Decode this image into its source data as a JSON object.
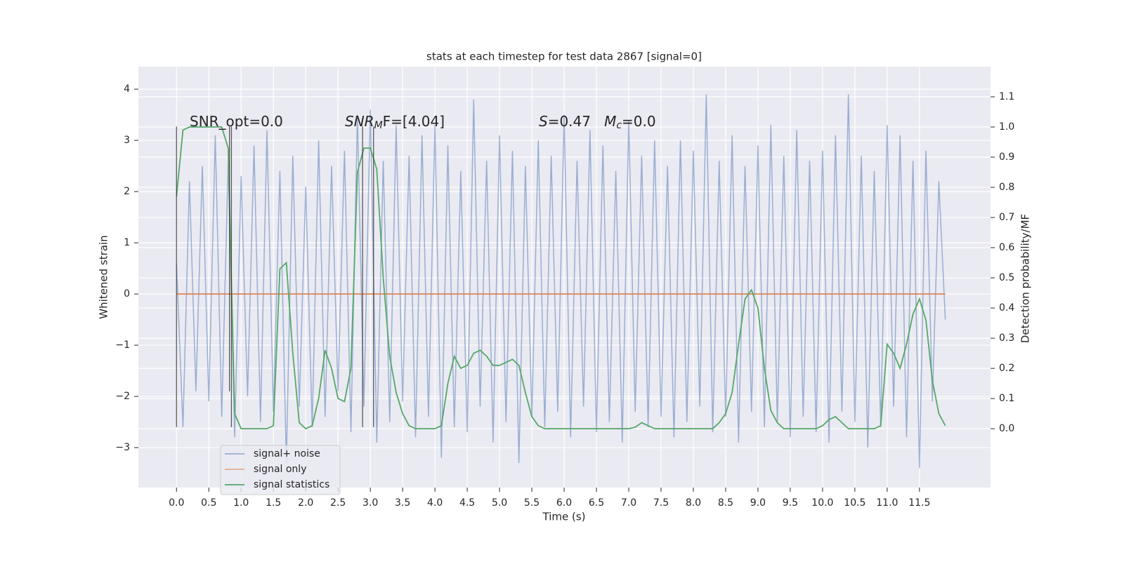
{
  "chart_data": {
    "type": "line",
    "title": "stats at each timestep for test data 2867 [signal=0]",
    "xlabel": "Time (s)",
    "ylabel": "Whitened strain",
    "y2label": "Detection probability/MF",
    "x": [
      0,
      0.1,
      0.2,
      0.3,
      0.4,
      0.5,
      0.6,
      0.7,
      0.8,
      0.9,
      1,
      1.1,
      1.2,
      1.3,
      1.4,
      1.5,
      1.6,
      1.7,
      1.8,
      1.9,
      2,
      2.1,
      2.2,
      2.3,
      2.4,
      2.5,
      2.6,
      2.7,
      2.8,
      2.9,
      3,
      3.1,
      3.2,
      3.3,
      3.4,
      3.5,
      3.6,
      3.7,
      3.8,
      3.9,
      4,
      4.1,
      4.2,
      4.3,
      4.4,
      4.5,
      4.6,
      4.7,
      4.8,
      4.9,
      5,
      5.1,
      5.2,
      5.3,
      5.4,
      5.5,
      5.6,
      5.7,
      5.8,
      5.9,
      6,
      6.1,
      6.2,
      6.3,
      6.4,
      6.5,
      6.6,
      6.7,
      6.8,
      6.9,
      7,
      7.1,
      7.2,
      7.3,
      7.4,
      7.5,
      7.6,
      7.7,
      7.8,
      7.9,
      8,
      8.1,
      8.2,
      8.3,
      8.4,
      8.5,
      8.6,
      8.7,
      8.8,
      8.9,
      9,
      9.1,
      9.2,
      9.3,
      9.4,
      9.5,
      9.6,
      9.7,
      9.8,
      9.9,
      10,
      10.1,
      10.2,
      10.3,
      10.4,
      10.5,
      10.6,
      10.7,
      10.8,
      10.9,
      11,
      11.1,
      11.2,
      11.3,
      11.4,
      11.5,
      11.6,
      11.7,
      11.8,
      11.9
    ],
    "series": [
      {
        "name": "signal+ noise",
        "color": "#4c72b0",
        "values": [
          0.6,
          -2.6,
          2.2,
          -1.9,
          2.5,
          -2.1,
          3.1,
          -2.4,
          2.6,
          -2.8,
          2.3,
          -2.0,
          2.9,
          -2.5,
          3.2,
          -2.3,
          2.4,
          -3.3,
          2.7,
          -2.2,
          2.1,
          -2.6,
          3.0,
          -2.4,
          2.5,
          -1.9,
          2.8,
          -2.7,
          3.5,
          -2.2,
          3.6,
          -2.9,
          2.6,
          -2.5,
          3.3,
          -2.1,
          2.7,
          -2.8,
          3.1,
          -2.4,
          3.3,
          -3.2,
          2.9,
          -2.6,
          2.4,
          -2.7,
          3.8,
          -2.2,
          2.6,
          -2.9,
          3.1,
          -2.5,
          2.8,
          -3.3,
          2.5,
          -2.4,
          3.0,
          -2.6,
          2.7,
          -2.3,
          3.5,
          -2.8,
          2.6,
          -2.2,
          3.2,
          -2.7,
          2.9,
          -2.5,
          2.4,
          -2.9,
          3.4,
          -2.3,
          2.7,
          -2.6,
          3.0,
          -2.4,
          2.5,
          -2.8,
          3.0,
          -2.5,
          2.8,
          -2.2,
          3.9,
          -2.7,
          2.6,
          -2.4,
          3.1,
          -2.9,
          2.5,
          -2.3,
          2.9,
          -2.6,
          3.3,
          -2.5,
          2.7,
          -2.8,
          3.2,
          -2.4,
          2.6,
          -2.7,
          2.8,
          -2.9,
          3.1,
          -2.3,
          3.9,
          -2.5,
          2.7,
          -3.0,
          2.4,
          -2.6,
          3.3,
          -2.2,
          3.1,
          -2.8,
          2.6,
          -3.4,
          2.8,
          -2.1,
          2.2,
          -0.5
        ]
      },
      {
        "name": "signal only",
        "color": "#dd8452",
        "values": [
          0,
          0,
          0,
          0,
          0,
          0,
          0,
          0,
          0,
          0,
          0,
          0,
          0,
          0,
          0,
          0,
          0,
          0,
          0,
          0,
          0,
          0,
          0,
          0,
          0,
          0,
          0,
          0,
          0,
          0,
          0,
          0,
          0,
          0,
          0,
          0,
          0,
          0,
          0,
          0,
          0,
          0,
          0,
          0,
          0,
          0,
          0,
          0,
          0,
          0,
          0,
          0,
          0,
          0,
          0,
          0,
          0,
          0,
          0,
          0,
          0,
          0,
          0,
          0,
          0,
          0,
          0,
          0,
          0,
          0,
          0,
          0,
          0,
          0,
          0,
          0,
          0,
          0,
          0,
          0,
          0,
          0,
          0,
          0,
          0,
          0,
          0,
          0,
          0,
          0,
          0,
          0,
          0,
          0,
          0,
          0,
          0,
          0,
          0,
          0,
          0,
          0,
          0,
          0,
          0,
          0,
          0,
          0,
          0,
          0,
          0,
          0,
          0,
          0,
          0,
          0,
          0,
          0,
          0,
          0
        ]
      },
      {
        "name": "signal statistics",
        "color": "#55a868",
        "axis": "y2",
        "values": [
          0.77,
          0.99,
          1.0,
          1.0,
          1.0,
          1.0,
          1.0,
          1.0,
          0.93,
          0.05,
          0.0,
          0.0,
          0.0,
          0.0,
          0.0,
          0.01,
          0.53,
          0.55,
          0.25,
          0.02,
          0.0,
          0.01,
          0.1,
          0.26,
          0.2,
          0.1,
          0.09,
          0.2,
          0.85,
          0.93,
          0.93,
          0.86,
          0.5,
          0.24,
          0.12,
          0.05,
          0.01,
          0.0,
          0.0,
          0.0,
          0.0,
          0.01,
          0.15,
          0.24,
          0.2,
          0.21,
          0.25,
          0.26,
          0.24,
          0.21,
          0.21,
          0.22,
          0.23,
          0.21,
          0.12,
          0.04,
          0.01,
          0.0,
          0.0,
          0.0,
          0,
          0,
          0,
          0,
          0,
          0,
          0,
          0,
          0,
          0,
          0.0,
          0.005,
          0.02,
          0.01,
          0,
          0,
          0,
          0,
          0,
          0,
          0,
          0,
          0,
          0,
          0.02,
          0.05,
          0.12,
          0.28,
          0.43,
          0.46,
          0.4,
          0.2,
          0.06,
          0.02,
          0,
          0,
          0,
          0,
          0,
          0,
          0.01,
          0.03,
          0.04,
          0.02,
          0,
          0,
          0,
          0,
          0,
          0.01,
          0.28,
          0.25,
          0.2,
          0.28,
          0.38,
          0.43,
          0.36,
          0.16,
          0.05,
          0.01
        ]
      }
    ],
    "vlines": [
      {
        "x": 0,
        "ymin": -2.6,
        "ymax": 3.27,
        "color": "#333333"
      },
      {
        "x": 0.82,
        "ymin": -1.9,
        "ymax": 3.27,
        "color": "#333333"
      },
      {
        "x": 0.85,
        "ymin": -2.6,
        "ymax": 3.27,
        "color": "#333333"
      },
      {
        "x": 2.88,
        "ymin": -2.6,
        "ymax": 3.27,
        "color": "#333333"
      },
      {
        "x": 3.05,
        "ymin": -2.6,
        "ymax": 3.27,
        "color": "#333333"
      }
    ],
    "annotations": [
      [
        "SNR_opt=0.0"
      ],
      [
        "SNR",
        "M",
        "F=[4.04]"
      ],
      [
        "S",
        "=0.47   ",
        "M",
        "c",
        "=0.0"
      ]
    ],
    "xlim": [
      -0.59,
      12.6
    ],
    "ylim": [
      -3.78,
      4.44
    ],
    "y2lim": [
      -0.195,
      1.2
    ],
    "xticks": [
      {
        "value": 0,
        "label": "0.0"
      },
      0.5,
      {
        "value": 1,
        "label": "1.0"
      },
      1.5,
      {
        "value": 2,
        "label": "2.0"
      },
      2.5,
      {
        "value": 3,
        "label": "3.0"
      },
      3.5,
      {
        "value": 4,
        "label": "4.0"
      },
      4.5,
      {
        "value": 5,
        "label": "5.0"
      },
      5.5,
      {
        "value": 6,
        "label": "6.0"
      },
      6.5,
      {
        "value": 7,
        "label": "7.0"
      },
      7.5,
      {
        "value": 8,
        "label": "8.0"
      },
      8.5,
      {
        "value": 9,
        "label": "9.0"
      },
      9.5,
      {
        "value": 10,
        "label": "10.0"
      },
      10.5,
      {
        "value": 11,
        "label": "11.0"
      },
      11.5
    ],
    "yticks": [
      {
        "value": -3,
        "label": "−3"
      },
      {
        "value": -2,
        "label": "−2"
      },
      {
        "value": -1,
        "label": "−1"
      },
      0,
      1,
      2,
      3,
      4
    ],
    "y2ticks": [
      {
        "value": 0,
        "label": "0.0"
      },
      0.1,
      0.2,
      0.3,
      0.4,
      0.5,
      0.6,
      0.7,
      0.8,
      0.9,
      {
        "value": 1,
        "label": "1.0"
      },
      1.1
    ],
    "grid": true,
    "legend": "lower left"
  }
}
